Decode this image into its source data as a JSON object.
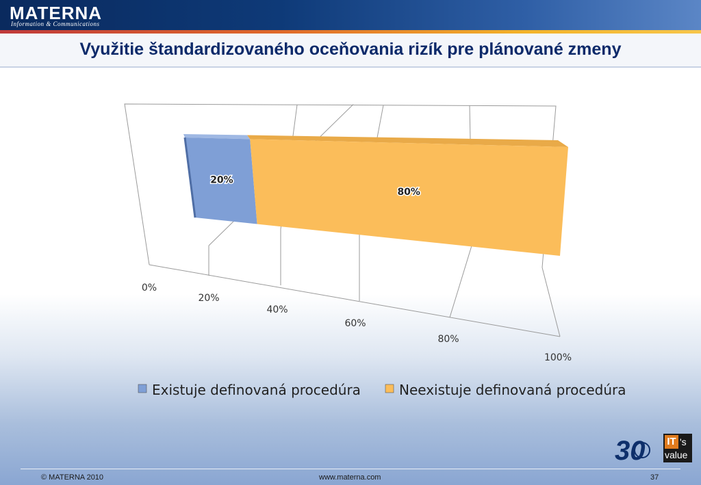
{
  "header": {
    "logo_title": "MATERNA",
    "logo_subtitle": "Information & Communications"
  },
  "slide": {
    "title": "Využitie štandardizovaného oceňovania rizík pre plánované zmeny"
  },
  "chart_data": {
    "type": "bar",
    "orientation": "horizontal-stacked-100-3d",
    "categories": [
      ""
    ],
    "series": [
      {
        "name": "Existuje definovaná procedúra",
        "values": [
          20
        ],
        "label": "20%",
        "color": "#7f9fd6"
      },
      {
        "name": "Neexistuje definovaná procedúra",
        "values": [
          80
        ],
        "label": "80%",
        "color": "#fbbd5a"
      }
    ],
    "xlim": [
      0,
      100
    ],
    "tick_labels": [
      "0%",
      "20%",
      "40%",
      "60%",
      "80%",
      "100%"
    ],
    "grid": true,
    "legend_position": "bottom"
  },
  "badges": {
    "anniversary": "30",
    "its_value_1": "IT",
    "its_value_2": "'s",
    "its_value_3": "value"
  },
  "footer": {
    "copyright": "© MATERNA 2010",
    "url": "www.materna.com",
    "page_number": "37"
  },
  "colors": {
    "header_dark": "#0a2a5e",
    "title_color": "#0d2a6a"
  }
}
